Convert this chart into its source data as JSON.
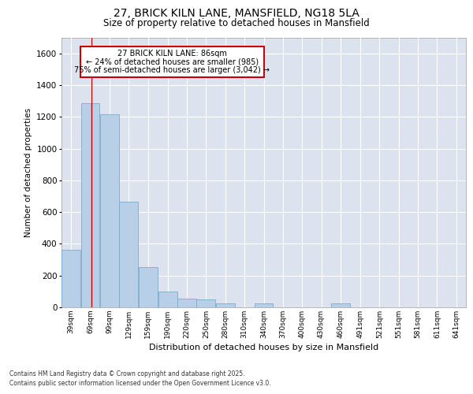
{
  "title_line1": "27, BRICK KILN LANE, MANSFIELD, NG18 5LA",
  "title_line2": "Size of property relative to detached houses in Mansfield",
  "xlabel": "Distribution of detached houses by size in Mansfield",
  "ylabel": "Number of detached properties",
  "background_color": "#dde3ee",
  "bar_color": "#b8cfe8",
  "bar_edge_color": "#7aaace",
  "annotation_line": "27 BRICK KILN LANE: 86sqm",
  "annotation_pct1": "← 24% of detached houses are smaller (985)",
  "annotation_pct2": "75% of semi-detached houses are larger (3,042) →",
  "property_line_x": 86,
  "categories": [
    "39sqm",
    "69sqm",
    "99sqm",
    "129sqm",
    "159sqm",
    "190sqm",
    "220sqm",
    "250sqm",
    "280sqm",
    "310sqm",
    "340sqm",
    "370sqm",
    "400sqm",
    "430sqm",
    "460sqm",
    "491sqm",
    "521sqm",
    "551sqm",
    "581sqm",
    "611sqm",
    "641sqm"
  ],
  "bin_starts": [
    39,
    69,
    99,
    129,
    159,
    190,
    220,
    250,
    280,
    310,
    340,
    370,
    400,
    430,
    460,
    491,
    521,
    551,
    581,
    611,
    641
  ],
  "bin_width": 30,
  "values": [
    360,
    1285,
    1215,
    665,
    255,
    100,
    55,
    50,
    25,
    0,
    25,
    0,
    0,
    0,
    25,
    0,
    0,
    0,
    0,
    0,
    0
  ],
  "ylim": [
    0,
    1700
  ],
  "yticks": [
    0,
    200,
    400,
    600,
    800,
    1000,
    1200,
    1400,
    1600
  ],
  "footer_line1": "Contains HM Land Registry data © Crown copyright and database right 2025.",
  "footer_line2": "Contains public sector information licensed under the Open Government Licence v3.0."
}
